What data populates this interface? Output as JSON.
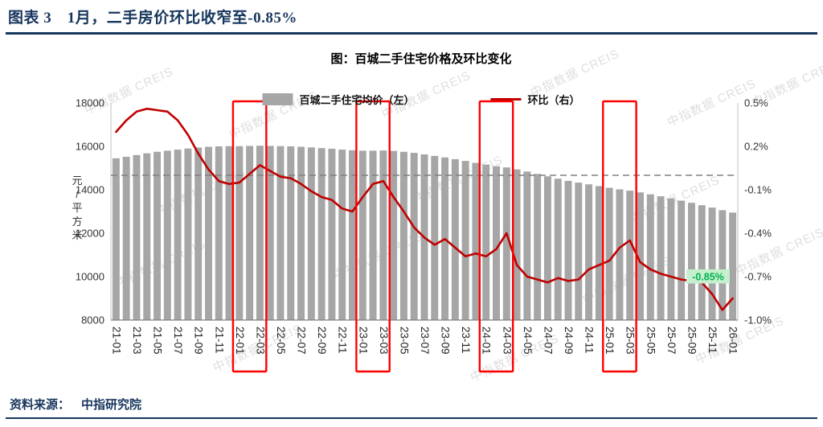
{
  "page": {
    "header_title": "图表 3　1月，二手房价环比收窄至-0.85%",
    "source_label": "资料来源：",
    "source_value": "中指研究院",
    "watermark_text": "中指数据 CREIS",
    "accent_color": "#17365d"
  },
  "chart_data": {
    "type": "bar+line",
    "title": "图：百城二手住宅价格及环比变化",
    "left_axis": {
      "label": "元/平方米",
      "min": 8000,
      "max": 18000,
      "ticks": [
        8000,
        10000,
        12000,
        14000,
        16000,
        18000
      ]
    },
    "right_axis": {
      "min": -1.0,
      "max": 0.5,
      "ticks": [
        "0.5%",
        "0.2%",
        "-0.1%",
        "-0.4%",
        "-0.7%",
        "-1.0%"
      ]
    },
    "x_tick_every": 2,
    "zero_line_right": 0.0,
    "categories": [
      "21-01",
      "21-02",
      "21-03",
      "21-04",
      "21-05",
      "21-06",
      "21-07",
      "21-08",
      "21-09",
      "21-10",
      "21-11",
      "21-12",
      "22-01",
      "22-02",
      "22-03",
      "22-04",
      "22-05",
      "22-06",
      "22-07",
      "22-08",
      "22-09",
      "22-10",
      "22-11",
      "22-12",
      "23-01",
      "23-02",
      "23-03",
      "23-04",
      "23-05",
      "23-06",
      "23-07",
      "23-08",
      "23-09",
      "23-10",
      "23-11",
      "23-12",
      "24-01",
      "24-02",
      "24-03",
      "24-04",
      "24-05",
      "24-06",
      "24-07",
      "24-08",
      "24-09",
      "24-10",
      "24-11",
      "24-12",
      "25-01",
      "25-02",
      "25-03",
      "25-04",
      "25-05",
      "25-06",
      "25-07",
      "25-08",
      "25-09",
      "25-10",
      "25-11",
      "25-12",
      "26-01"
    ],
    "series": [
      {
        "name": "百城二手住宅均价（左）",
        "type": "bar",
        "axis": "left",
        "color": "#a6a6a6",
        "values": [
          15450,
          15520,
          15600,
          15680,
          15750,
          15800,
          15850,
          15900,
          15950,
          15980,
          16000,
          16010,
          16010,
          16020,
          16030,
          16020,
          16010,
          16000,
          15980,
          15950,
          15920,
          15890,
          15850,
          15820,
          15800,
          15800,
          15810,
          15790,
          15750,
          15700,
          15630,
          15560,
          15490,
          15410,
          15330,
          15240,
          15160,
          15090,
          15030,
          14940,
          14840,
          14730,
          14620,
          14510,
          14410,
          14330,
          14250,
          14170,
          14090,
          14020,
          13960,
          13880,
          13790,
          13700,
          13600,
          13500,
          13400,
          13290,
          13180,
          13060,
          12950
        ]
      },
      {
        "name": "环比（右）",
        "type": "line",
        "axis": "right",
        "color": "#c00000",
        "values": [
          0.3,
          0.38,
          0.44,
          0.46,
          0.45,
          0.44,
          0.38,
          0.28,
          0.15,
          0.04,
          -0.04,
          -0.06,
          -0.05,
          0.01,
          0.07,
          0.03,
          -0.01,
          -0.02,
          -0.06,
          -0.11,
          -0.15,
          -0.17,
          -0.23,
          -0.25,
          -0.15,
          -0.06,
          -0.04,
          -0.15,
          -0.25,
          -0.36,
          -0.43,
          -0.48,
          -0.44,
          -0.5,
          -0.56,
          -0.54,
          -0.56,
          -0.51,
          -0.4,
          -0.62,
          -0.7,
          -0.72,
          -0.74,
          -0.71,
          -0.73,
          -0.72,
          -0.65,
          -0.62,
          -0.59,
          -0.5,
          -0.45,
          -0.6,
          -0.65,
          -0.68,
          -0.7,
          -0.72,
          -0.73,
          -0.74,
          -0.82,
          -0.93,
          -0.85
        ]
      }
    ],
    "highlight_boxes": [
      [
        "22-01",
        "22-03"
      ],
      [
        "23-01",
        "23-03"
      ],
      [
        "24-01",
        "24-03"
      ],
      [
        "25-01",
        "25-03"
      ]
    ],
    "annotation": {
      "text": "-0.85%",
      "color": "#00b050",
      "bg": "#c6efce"
    },
    "grid": false,
    "legend_position": "top"
  }
}
